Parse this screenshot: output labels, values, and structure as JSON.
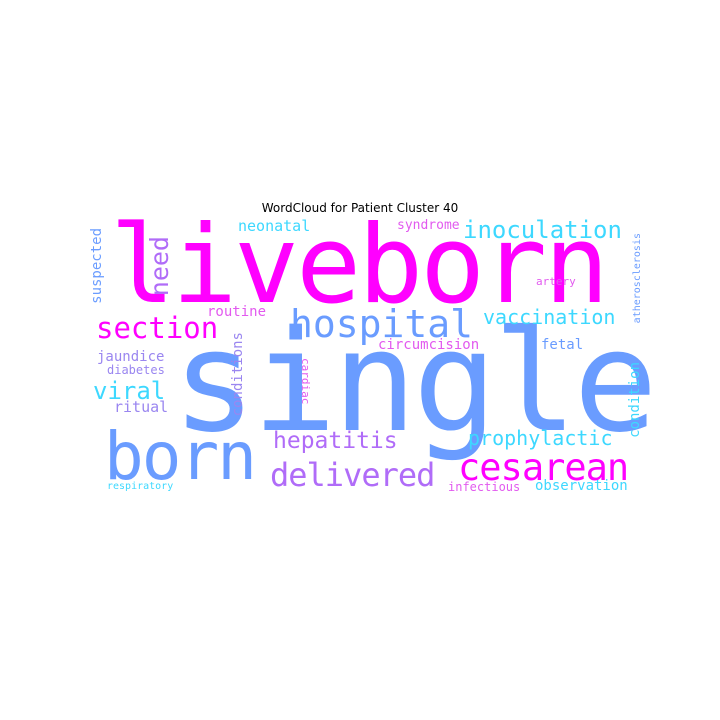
{
  "title": "WordCloud for Patient Cluster 40",
  "words": {
    "liveborn": "liveborn",
    "single": "single",
    "born": "born",
    "hospital": "hospital",
    "section": "section",
    "cesarean": "cesarean",
    "delivered": "delivered",
    "inoculation": "inoculation",
    "vaccination": "vaccination",
    "prophylactic": "prophylactic",
    "hepatitis": "hepatitis",
    "need": "need",
    "viral": "viral",
    "neonatal": "neonatal",
    "syndrome": "syndrome",
    "circumcision": "circumcision",
    "routine": "routine",
    "jaundice": "jaundice",
    "diabetes": "diabetes",
    "ritual": "ritual",
    "conditions": "conditions",
    "cardiac": "cardiac",
    "fetal": "fetal",
    "artery": "artery",
    "suspected": "suspected",
    "atherosclerosis": "atherosclerosis",
    "condition": "condition",
    "observation": "observation",
    "infectious": "infectious",
    "respiratory": "respiratory"
  },
  "colors": {
    "magenta": "#ff00ff",
    "blue": "#6a9cff",
    "cyan": "#3dd8ff",
    "purple": "#b06cf8",
    "violet": "#9a86f0",
    "pink": "#e25aef"
  }
}
